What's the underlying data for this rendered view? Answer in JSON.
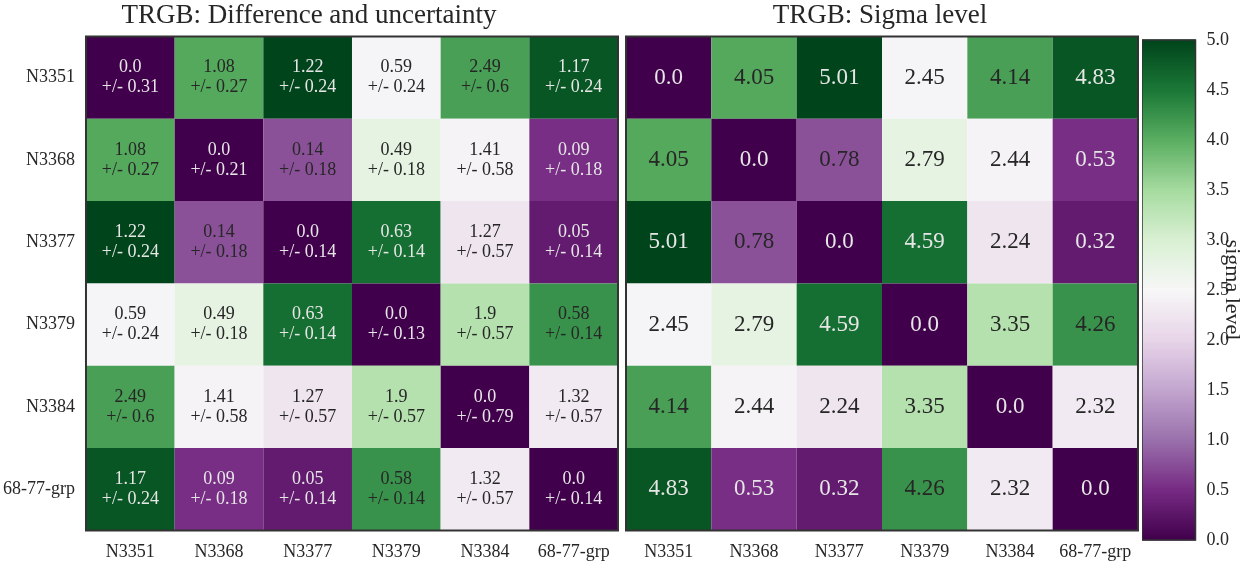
{
  "chart_data": [
    {
      "type": "heatmap",
      "title": "TRGB: Difference and uncertainty",
      "categories": [
        "N3351",
        "N3368",
        "N3377",
        "N3379",
        "N3384",
        "68-77-grp"
      ],
      "y_categories": [
        "N3351",
        "N3368",
        "N3377",
        "N3379",
        "N3384",
        "68-77-grp"
      ],
      "cells": [
        [
          0.0,
          1.08,
          1.22,
          0.59,
          2.49,
          1.17
        ],
        [
          1.08,
          0.0,
          0.14,
          0.49,
          1.41,
          0.09
        ],
        [
          1.22,
          0.14,
          0.0,
          0.63,
          1.27,
          0.05
        ],
        [
          0.59,
          0.49,
          0.63,
          0.0,
          1.9,
          0.58
        ],
        [
          2.49,
          1.41,
          1.27,
          1.9,
          0.0,
          1.32
        ],
        [
          1.17,
          0.09,
          0.05,
          0.58,
          1.32,
          0.0
        ]
      ],
      "cell_labels": [
        [
          "0.0",
          "1.08",
          "1.22",
          "0.59",
          "2.49",
          "1.17"
        ],
        [
          "1.08",
          "0.0",
          "0.14",
          "0.49",
          "1.41",
          "0.09"
        ],
        [
          "1.22",
          "0.14",
          "0.0",
          "0.63",
          "1.27",
          "0.05"
        ],
        [
          "0.59",
          "0.49",
          "0.63",
          "0.0",
          "1.9",
          "0.58"
        ],
        [
          "2.49",
          "1.41",
          "1.27",
          "1.9",
          "0.0",
          "1.32"
        ],
        [
          "1.17",
          "0.09",
          "0.05",
          "0.58",
          "1.32",
          "0.0"
        ]
      ],
      "annotations": [
        "+/- 0.31",
        "+/- 0.27",
        "+/- 0.24",
        "+/- 0.24",
        "+/- 0.6",
        "+/- 0.24",
        "+/- 0.27",
        "+/- 0.21",
        "+/- 0.18",
        "+/- 0.18",
        "+/- 0.58",
        "+/- 0.18",
        "+/- 0.24",
        "+/- 0.18",
        "+/- 0.14",
        "+/- 0.14",
        "+/- 0.57",
        "+/- 0.14",
        "+/- 0.24",
        "+/- 0.18",
        "+/- 0.14",
        "+/- 0.13",
        "+/- 0.57",
        "+/- 0.14",
        "+/- 0.6",
        "+/- 0.58",
        "+/- 0.57",
        "+/- 0.57",
        "+/- 0.79",
        "+/- 0.57",
        "+/- 0.24",
        "+/- 0.18",
        "+/- 0.14",
        "+/- 0.14",
        "+/- 0.57",
        "+/- 0.14"
      ]
    },
    {
      "type": "heatmap",
      "title": "TRGB: Sigma level",
      "categories": [
        "N3351",
        "N3368",
        "N3377",
        "N3379",
        "N3384",
        "68-77-grp"
      ],
      "y_categories": [
        null,
        null,
        null,
        null,
        null,
        null
      ],
      "cell_labels": [
        [
          "0.0",
          "4.05",
          "5.01",
          "2.45",
          "4.14",
          "4.83"
        ],
        [
          "4.05",
          "0.0",
          "0.78",
          "2.79",
          "2.44",
          "0.53"
        ],
        [
          "5.01",
          "0.78",
          "0.0",
          "4.59",
          "2.24",
          "0.32"
        ],
        [
          "2.45",
          "2.79",
          "4.59",
          "0.0",
          "3.35",
          "4.26"
        ],
        [
          "4.14",
          "2.44",
          "2.24",
          "3.35",
          "0.0",
          "2.32"
        ],
        [
          "4.83",
          "0.53",
          "0.32",
          "4.26",
          "2.32",
          "0.0"
        ]
      ],
      "cells": [
        [
          0.0,
          4.05,
          5.01,
          2.45,
          4.14,
          4.83
        ],
        [
          4.05,
          0.0,
          0.78,
          2.79,
          2.44,
          0.53
        ],
        [
          5.01,
          0.78,
          0.0,
          4.59,
          2.24,
          0.32
        ],
        [
          2.45,
          2.79,
          4.59,
          0.0,
          3.35,
          4.26
        ],
        [
          4.14,
          2.44,
          2.24,
          3.35,
          0.0,
          2.32
        ],
        [
          4.83,
          0.53,
          0.32,
          4.26,
          2.32,
          0.0
        ]
      ],
      "tick_labels": "x",
      "clim": [
        0,
        5
      ],
      "cticks": [
        {
          "value": 0,
          "label": "0.0"
        },
        {
          "value": 0.5,
          "label": "0.5"
        },
        {
          "value": 1,
          "label": "1.0"
        },
        {
          "value": 1.5,
          "label": "1.5"
        },
        {
          "value": 2,
          "label": "2.0"
        },
        {
          "value": 2.5,
          "label": "2.5"
        },
        {
          "value": 3,
          "label": "3.0"
        },
        {
          "value": 3.5,
          "label": "3.5"
        },
        {
          "value": 4,
          "label": "4.0"
        },
        {
          "value": 4.5,
          "label": "4.5"
        },
        {
          "value": 5,
          "label": "5.0"
        }
      ],
      "clabel": "sigma level"
    }
  ]
}
